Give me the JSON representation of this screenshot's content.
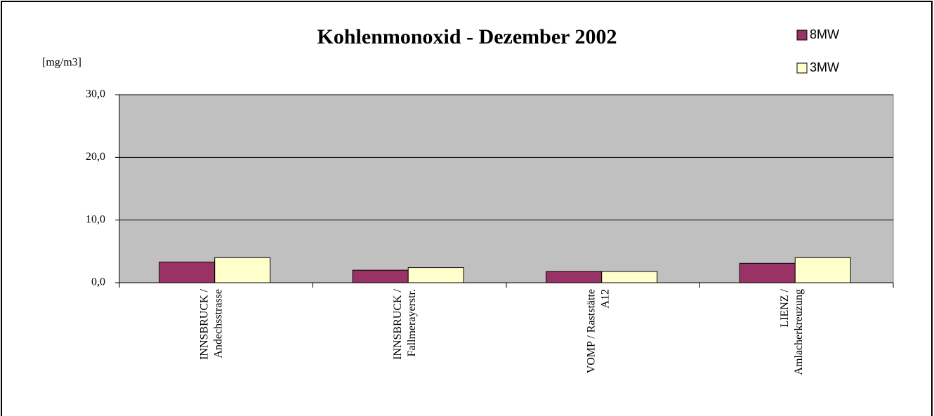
{
  "chart_data": {
    "type": "bar",
    "title": "Kohlenmonoxid - Dezember 2002",
    "y_label": "[mg/m3]",
    "categories": [
      [
        "INNSBRUCK /",
        "Andechsstrasse"
      ],
      [
        "INNSBRUCK /",
        "Fallmerayerstr."
      ],
      [
        "VOMP / Raststätte",
        "A12"
      ],
      [
        "LIENZ /",
        "Amlacherkreuzung"
      ]
    ],
    "series": [
      {
        "name": "8MW",
        "color": "#993366",
        "values": [
          3.3,
          2.0,
          1.8,
          3.1
        ]
      },
      {
        "name": "3MW",
        "color": "#ffffcc",
        "values": [
          4.0,
          2.4,
          1.8,
          4.0
        ]
      }
    ],
    "ylim": [
      0,
      30
    ],
    "yticks": [
      {
        "value": 0,
        "label": "0,0"
      },
      {
        "value": 10,
        "label": "10,0"
      },
      {
        "value": 20,
        "label": "20,0"
      },
      {
        "value": 30,
        "label": "30,0"
      }
    ],
    "grid": true,
    "plot_background": "#c0c0c0",
    "legend_position": "top-right"
  }
}
